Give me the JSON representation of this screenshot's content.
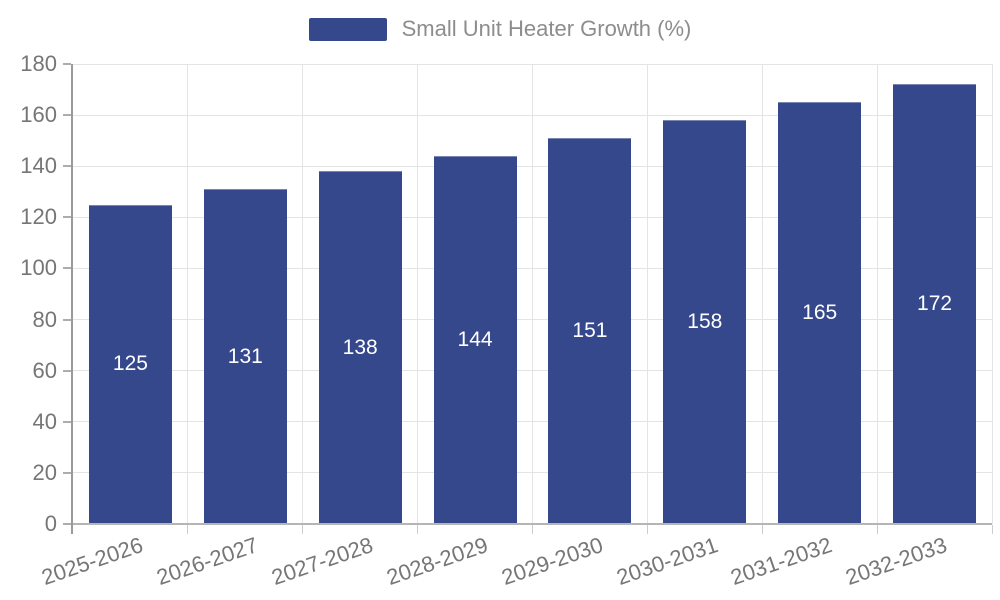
{
  "chart_data": {
    "type": "bar",
    "title": "Small Unit Heater Growth (%)",
    "legend": [
      "Small Unit Heater Growth (%)"
    ],
    "legend_position": "top-center",
    "categories": [
      "2025-2026",
      "2026-2027",
      "2027-2028",
      "2028-2029",
      "2029-2030",
      "2030-2031",
      "2031-2032",
      "2032-2033"
    ],
    "series": [
      {
        "name": "Small Unit Heater Growth (%)",
        "values": [
          125,
          131,
          138,
          144,
          151,
          158,
          165,
          172
        ]
      }
    ],
    "values": [
      125,
      131,
      138,
      144,
      151,
      158,
      165,
      172
    ],
    "xlabel": "",
    "ylabel": "",
    "ylim": [
      0,
      180
    ],
    "ytick_step": 20,
    "yticks": [
      0,
      20,
      40,
      60,
      80,
      100,
      120,
      140,
      160,
      180
    ],
    "grid": true,
    "bar_label_position": "inside-center",
    "x_label_rotation_deg": -19,
    "colors": {
      "background": "#FFFFFF",
      "bar": "#36488C",
      "bar_top_edge": "#7A86B2",
      "bar_label": "#FFFFFF",
      "grid_line": "#E4E4E4",
      "y_axis_line": "#9A9A9A",
      "x_axis_line": "#B5B5B5",
      "y_tick_mark": "#ADADAD",
      "x_tick_mark": "#CCCCCC",
      "tick_label": "#767676",
      "legend_text": "#8D8D8D"
    }
  }
}
